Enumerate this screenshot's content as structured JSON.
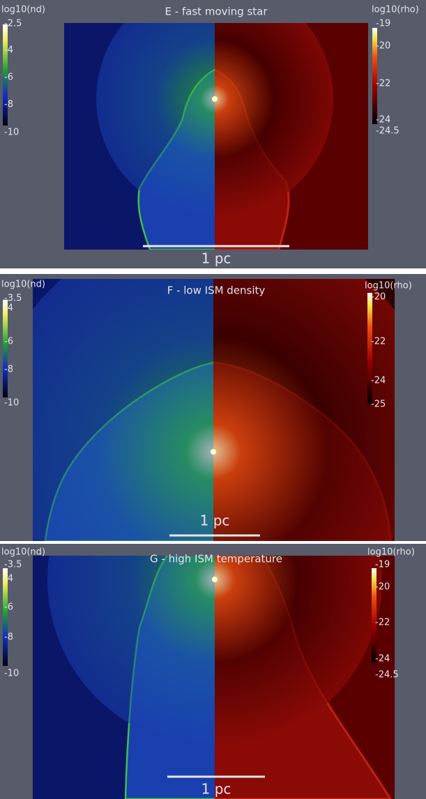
{
  "panels": [
    {
      "title": "E - fast moving star",
      "left_colorbar": {
        "label": "log10(nd)",
        "ticks": [
          "-2.5",
          "-4",
          "-6",
          "-8",
          "-10"
        ]
      },
      "right_colorbar": {
        "label": "log10(rho)",
        "ticks": [
          "-19",
          "-20",
          "-22",
          "-24",
          "-24.5"
        ]
      },
      "scale_bar": "1 pc"
    },
    {
      "title": "F - low ISM density",
      "left_colorbar": {
        "label": "log10(nd)",
        "ticks": [
          "-3.5",
          "-4",
          "-6",
          "-8",
          "-10"
        ]
      },
      "right_colorbar": {
        "label": "log10(rho)",
        "ticks": [
          "-20",
          "-22",
          "-24",
          "-25"
        ]
      },
      "scale_bar": "1 pc"
    },
    {
      "title": "G - high ISM temperature",
      "left_colorbar": {
        "label": "log10(nd)",
        "ticks": [
          "-3.5",
          "-4",
          "-6",
          "-8",
          "-10"
        ]
      },
      "right_colorbar": {
        "label": "log10(rho)",
        "ticks": [
          "-19",
          "-20",
          "-22",
          "-24",
          "-24.5"
        ]
      },
      "scale_bar": "1 pc"
    }
  ]
}
